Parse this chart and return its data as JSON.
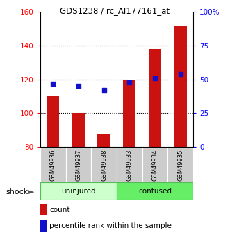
{
  "title": "GDS1238 / rc_AI177161_at",
  "samples": [
    "GSM49936",
    "GSM49937",
    "GSM49938",
    "GSM49933",
    "GSM49934",
    "GSM49935"
  ],
  "counts": [
    110,
    100,
    88,
    120,
    138,
    152
  ],
  "percentiles": [
    47,
    45,
    42,
    48,
    51,
    54
  ],
  "ylim_left": [
    80,
    160
  ],
  "ylim_right": [
    0,
    100
  ],
  "yticks_left": [
    80,
    100,
    120,
    140,
    160
  ],
  "yticks_right": [
    0,
    25,
    50,
    75,
    100
  ],
  "yticklabels_right": [
    "0",
    "25",
    "50",
    "75",
    "100%"
  ],
  "bar_color": "#cc1111",
  "dot_color": "#1111cc",
  "bar_bottom": 80,
  "uninjured_color": "#ccffcc",
  "contused_color": "#66ee66",
  "sample_bg_color": "#cccccc",
  "legend_count_label": "count",
  "legend_pct_label": "percentile rank within the sample",
  "shock_label": "shock",
  "grid_color": "black"
}
